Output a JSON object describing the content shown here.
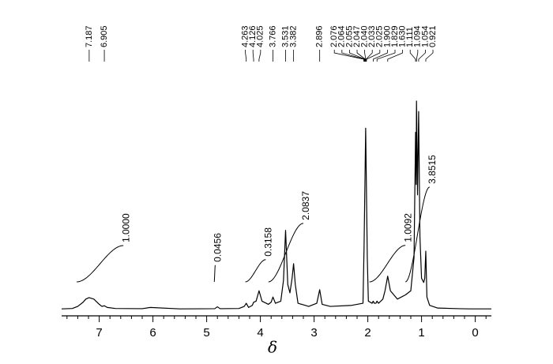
{
  "chart_data": {
    "type": "nmr",
    "xlabel": "δ",
    "color": "#000000",
    "xlim": [
      7.7,
      -0.3
    ],
    "ylim": [
      0,
      100
    ],
    "xticks": [
      7,
      6,
      5,
      4,
      3,
      2,
      1,
      0
    ],
    "xminorticks": [
      7.6,
      7.4,
      7.2,
      6.8,
      6.6,
      6.4,
      6.2,
      5.8,
      5.6,
      5.4,
      5.2,
      4.8,
      4.6,
      4.4,
      4.2,
      3.8,
      3.6,
      3.4,
      3.2,
      2.8,
      2.6,
      2.4,
      2.2,
      1.8,
      1.6,
      1.4,
      1.2,
      0.8,
      0.6,
      0.4,
      0.2,
      -0.2
    ],
    "x": [
      7.7,
      7.5,
      7.4,
      7.3,
      7.25,
      7.19,
      7.1,
      7.0,
      6.95,
      6.905,
      6.85,
      6.7,
      6.2,
      6.05,
      5.5,
      4.85,
      4.8,
      4.75,
      4.4,
      4.3,
      4.263,
      4.22,
      4.15,
      4.126,
      4.08,
      4.025,
      3.97,
      3.85,
      3.8,
      3.766,
      3.72,
      3.62,
      3.57,
      3.531,
      3.49,
      3.45,
      3.41,
      3.382,
      3.35,
      3.3,
      3.1,
      2.95,
      2.896,
      2.85,
      2.7,
      2.3,
      2.09,
      2.07,
      2.04,
      2.01,
      1.99,
      1.92,
      1.9,
      1.88,
      1.85,
      1.829,
      1.8,
      1.72,
      1.68,
      1.63,
      1.58,
      1.45,
      1.3,
      1.2,
      1.14,
      1.111,
      1.1,
      1.094,
      1.075,
      1.054,
      1.03,
      1.0,
      0.96,
      0.94,
      0.921,
      0.9,
      0.85,
      0.7,
      0.3,
      0.1,
      -0.1,
      -0.3
    ],
    "values": [
      0.3,
      0.5,
      1.5,
      3.5,
      5,
      5.7,
      5,
      2.5,
      1.5,
      1.8,
      1,
      0.5,
      0.4,
      1,
      0.3,
      0.4,
      1.3,
      0.4,
      0.5,
      1.5,
      3,
      1,
      2,
      3.5,
      4,
      9,
      4,
      2.5,
      3.5,
      6,
      3,
      4,
      14,
      38,
      12,
      8,
      15,
      22,
      12,
      3,
      1.5,
      3,
      9.5,
      2.5,
      1.5,
      2,
      3,
      30,
      87,
      25,
      4,
      3,
      4,
      3,
      3,
      4,
      3,
      5,
      9,
      16,
      9,
      5,
      7,
      9,
      25,
      85,
      60,
      100,
      55,
      95,
      35,
      15,
      13,
      15,
      28,
      6,
      2,
      0.7,
      0.4,
      0.3,
      0.3,
      0.3
    ],
    "peaks": [
      7.187,
      6.905,
      4.263,
      4.126,
      4.025,
      3.766,
      3.531,
      3.382,
      2.896,
      2.076,
      2.064,
      2.055,
      2.047,
      {
        "value": 2.04,
        "label": "2.040"
      },
      2.033,
      2.025,
      {
        "value": 1.9,
        "label": "1.900"
      },
      1.829,
      {
        "value": 1.63,
        "label": "1.630"
      },
      1.111,
      1.094,
      1.054,
      0.921
    ],
    "integrals": {
      "ranges": [
        [
          7.42,
          6.55
        ],
        [
          4.86,
          4.84
        ],
        [
          4.28,
          3.9
        ],
        [
          3.85,
          3.2
        ],
        [
          1.97,
          1.3
        ],
        [
          1.3,
          0.85
        ]
      ],
      "values": [
        1,
        0.0456,
        0.3158,
        2.0837,
        1.0092,
        3.8515
      ],
      "value_labels": [
        "1.0000",
        "0.0456",
        "0.3158",
        "2.0837",
        "1.0092",
        "3.8515"
      ]
    }
  }
}
